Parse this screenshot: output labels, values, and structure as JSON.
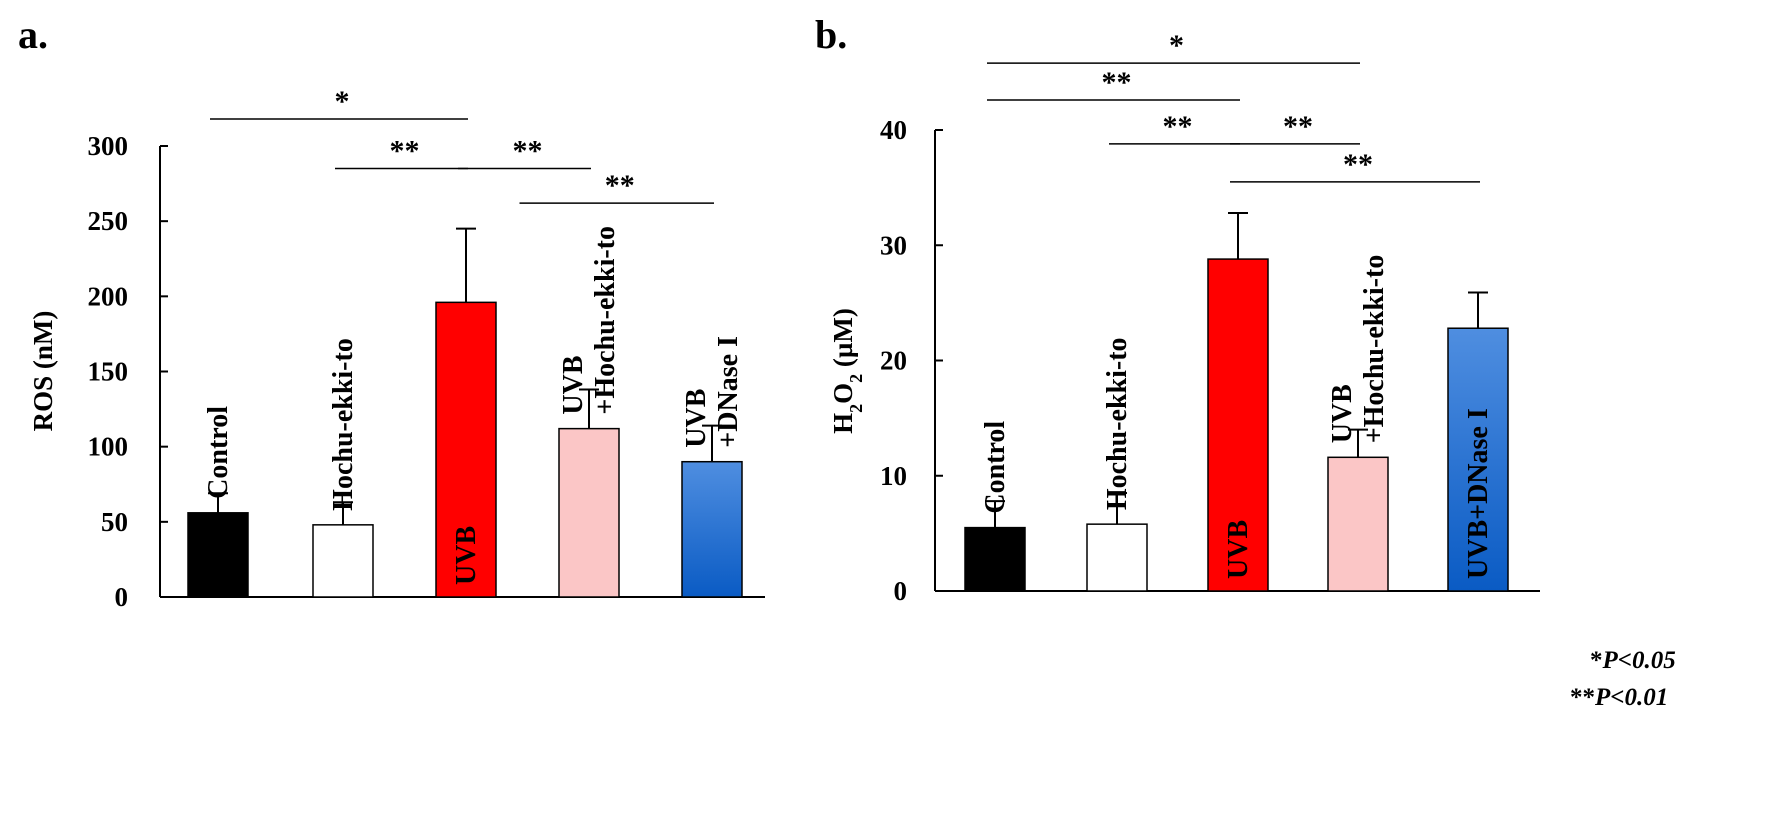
{
  "chart_data": [
    {
      "panel": "a.",
      "type": "bar",
      "ylabel": "ROS (nM)",
      "ylim": [
        0,
        300
      ],
      "yticks": [
        0,
        50,
        100,
        150,
        200,
        250,
        300
      ],
      "categories": [
        "Control",
        "Hochu-ekki-to",
        "UVB",
        "UVB +Hochu-ekki-to",
        "UVB +DNase I"
      ],
      "bar_labels": [
        [
          "Control"
        ],
        [
          "Hochu-ekki-to"
        ],
        [
          "UVB"
        ],
        [
          "UVB",
          "+Hochu-ekki-to"
        ],
        [
          "UVB",
          "+DNase I"
        ]
      ],
      "label_inside": [
        false,
        false,
        true,
        false,
        false
      ],
      "values": [
        56,
        48,
        196,
        112,
        90
      ],
      "errors": [
        13,
        15,
        49,
        26,
        24
      ],
      "colors": [
        "#000000",
        "#ffffff",
        "#ff0000",
        "#fbc6c6",
        "gradient-blue"
      ],
      "significance": [
        {
          "from": 0,
          "to": 2,
          "label": "*",
          "y": 318
        },
        {
          "from": 1,
          "to": 2,
          "label": "**",
          "y": 285
        },
        {
          "from": 2,
          "to": 3,
          "label": "**",
          "y": 285
        },
        {
          "from": 2.5,
          "to": 4.5,
          "label": "**",
          "y": 262
        }
      ]
    },
    {
      "panel": "b.",
      "type": "bar",
      "ylabel": "H2O2 (µM)",
      "ylim": [
        0,
        40
      ],
      "yticks": [
        0,
        10,
        20,
        30,
        40
      ],
      "categories": [
        "Control",
        "Hochu-ekki-to",
        "UVB",
        "UVB +Hochu-ekki-to",
        "UVB+DNase I"
      ],
      "bar_labels": [
        [
          "Control"
        ],
        [
          "Hochu-ekki-to"
        ],
        [
          "UVB"
        ],
        [
          "UVB",
          "+Hochu-ekki-to"
        ],
        [
          "UVB+DNase I"
        ]
      ],
      "label_inside": [
        false,
        false,
        true,
        false,
        true
      ],
      "values": [
        5.5,
        5.8,
        28.8,
        11.6,
        22.8
      ],
      "errors": [
        2.3,
        2.7,
        4,
        2.4,
        3.1
      ],
      "colors": [
        "#000000",
        "#ffffff",
        "#ff0000",
        "#fbc6c6",
        "gradient-blue"
      ],
      "significance": [
        {
          "from": 0,
          "to": 3,
          "label": "*",
          "y": 45.8
        },
        {
          "from": 0,
          "to": 2,
          "label": "**",
          "y": 42.6
        },
        {
          "from": 1,
          "to": 2,
          "label": "**",
          "y": 38.8
        },
        {
          "from": 2,
          "to": 3,
          "label": "**",
          "y": 38.8
        },
        {
          "from": 2,
          "to": 4.5,
          "label": "**",
          "y": 35.5
        }
      ]
    }
  ],
  "legend": {
    "p05_stars": "*",
    "p05_text": "P<0.05",
    "p01_stars": "**",
    "p01_text": "P<0.01"
  }
}
